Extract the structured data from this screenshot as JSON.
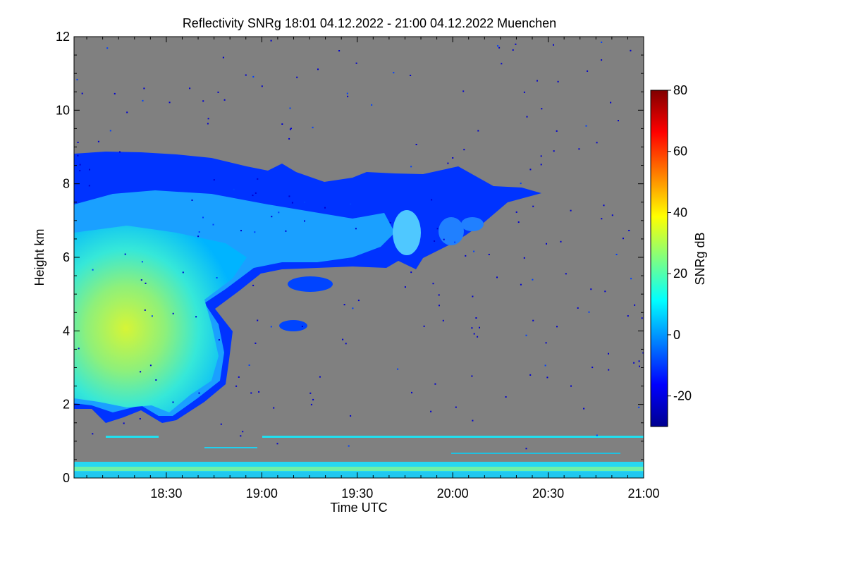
{
  "chart_data": {
    "type": "heatmap",
    "title": "Reflectivity SNRg   18:01 04.12.2022 - 21:00 04.12.2022 Muenchen",
    "xlabel": "Time UTC",
    "ylabel": "Height km",
    "colorbar_label": "SNRg dB",
    "x_range": [
      "18:01",
      "21:00"
    ],
    "x_ticks": [
      "18:30",
      "19:00",
      "19:30",
      "20:00",
      "20:30",
      "21:00"
    ],
    "y_range": [
      0,
      12
    ],
    "y_ticks": [
      "0",
      "2",
      "4",
      "6",
      "8",
      "10",
      "12"
    ],
    "colorbar_range": [
      -30,
      80
    ],
    "colorbar_ticks": [
      "-20",
      "0",
      "20",
      "40",
      "60",
      "80"
    ],
    "background_color": "#808080",
    "features": [
      {
        "description": "thick cloud layer",
        "time_start": "18:01",
        "time_end": "19:32",
        "height_bottom_km": 1.6,
        "height_top_km": 8.8,
        "snr_core_db": 30
      },
      {
        "description": "thin upper cloud extension",
        "time_start": "19:32",
        "time_end": "20:28",
        "height_bottom_km": 6.0,
        "height_top_km": 8.3,
        "snr_core_db": -10
      },
      {
        "description": "boundary layer return",
        "time_start": "18:01",
        "time_end": "21:00",
        "height_bottom_km": 0.1,
        "height_top_km": 0.35,
        "snr_core_db": 10
      },
      {
        "description": "constant line near 1.1 km",
        "time_start": "18:06",
        "time_end": "21:00",
        "height_km": 1.1,
        "snr_core_db": 5
      }
    ]
  }
}
